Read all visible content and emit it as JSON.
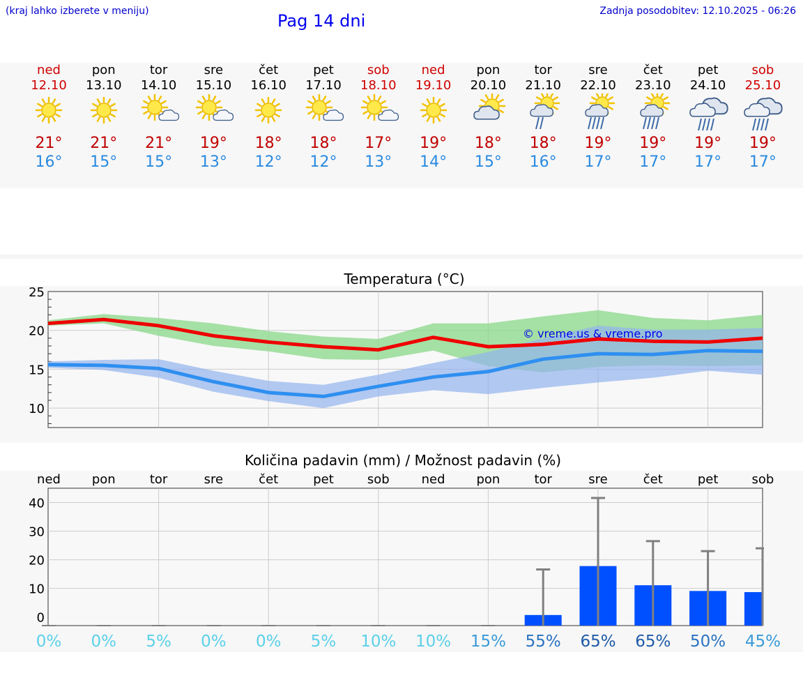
{
  "header": {
    "note": "(kraj lahko izberete v meniju)",
    "title": "Pag 14 dni",
    "updated": "Zadnja posodobitev: 12.10.2025 - 06:26"
  },
  "colors": {
    "weekday": "#000000",
    "weekend": "#d00000",
    "tmax": "#c00000",
    "tmin": "#2a8ae0",
    "max_line": "#ee0000",
    "min_line": "#2e8ff0",
    "max_band": "#8ad88a",
    "min_band": "#93b4ee",
    "bar": "#0050ff"
  },
  "days": [
    {
      "name": "ned",
      "date": "12.10",
      "icon": "sun-icon",
      "tmax": "21°",
      "tmin": "16°",
      "weekend": true
    },
    {
      "name": "pon",
      "date": "13.10",
      "icon": "sun-icon",
      "tmax": "21°",
      "tmin": "15°",
      "weekend": false
    },
    {
      "name": "tor",
      "date": "14.10",
      "icon": "sun-cloud-icon",
      "tmax": "21°",
      "tmin": "15°",
      "weekend": false
    },
    {
      "name": "sre",
      "date": "15.10",
      "icon": "sun-cloud-icon",
      "tmax": "19°",
      "tmin": "13°",
      "weekend": false
    },
    {
      "name": "čet",
      "date": "16.10",
      "icon": "sun-icon",
      "tmax": "18°",
      "tmin": "12°",
      "weekend": false
    },
    {
      "name": "pet",
      "date": "17.10",
      "icon": "sun-cloud-icon",
      "tmax": "18°",
      "tmin": "12°",
      "weekend": false
    },
    {
      "name": "sob",
      "date": "18.10",
      "icon": "sun-cloud-icon",
      "tmax": "17°",
      "tmin": "13°",
      "weekend": true
    },
    {
      "name": "ned",
      "date": "19.10",
      "icon": "sun-icon",
      "tmax": "19°",
      "tmin": "14°",
      "weekend": true
    },
    {
      "name": "pon",
      "date": "20.10",
      "icon": "cloud-sun-icon",
      "tmax": "18°",
      "tmin": "15°",
      "weekend": false
    },
    {
      "name": "tor",
      "date": "21.10",
      "icon": "sun-cloud-rain-icon",
      "tmax": "18°",
      "tmin": "16°",
      "weekend": false
    },
    {
      "name": "sre",
      "date": "22.10",
      "icon": "sun-cloud-heavy-rain-icon",
      "tmax": "19°",
      "tmin": "17°",
      "weekend": false
    },
    {
      "name": "čet",
      "date": "23.10",
      "icon": "sun-cloud-heavy-rain-icon",
      "tmax": "19°",
      "tmin": "17°",
      "weekend": false
    },
    {
      "name": "pet",
      "date": "24.10",
      "icon": "cloud-rain-icon",
      "tmax": "19°",
      "tmin": "17°",
      "weekend": false
    },
    {
      "name": "sob",
      "date": "25.10",
      "icon": "cloud-rain-icon",
      "tmax": "19°",
      "tmin": "17°",
      "weekend": true
    }
  ],
  "chart_data": [
    {
      "type": "line",
      "title": "Temperatura (°C)",
      "ylim": [
        7.5,
        25
      ],
      "yticks": [
        10,
        15,
        20,
        25
      ],
      "watermark": "© vreme.us & vreme.pro",
      "x": [
        0,
        1,
        2,
        3,
        4,
        5,
        6,
        7,
        8,
        9,
        10,
        11,
        12,
        13
      ],
      "series": [
        {
          "name": "max",
          "values": [
            20.9,
            21.4,
            20.6,
            19.3,
            18.5,
            17.9,
            17.5,
            19.1,
            17.9,
            18.2,
            18.9,
            18.6,
            18.5,
            19.0
          ],
          "upper": [
            21.3,
            22.1,
            21.6,
            20.9,
            19.9,
            19.2,
            18.9,
            20.9,
            20.9,
            21.8,
            22.6,
            21.6,
            21.3,
            22.0
          ],
          "lower": [
            20.6,
            20.9,
            19.3,
            18.0,
            17.3,
            16.3,
            16.2,
            17.4,
            15.4,
            14.6,
            15.3,
            15.5,
            15.4,
            15.5
          ]
        },
        {
          "name": "min",
          "values": [
            15.6,
            15.5,
            15.1,
            13.4,
            12.0,
            11.5,
            12.8,
            14.0,
            14.7,
            16.3,
            17.0,
            16.9,
            17.4,
            17.3
          ],
          "upper": [
            16.0,
            16.2,
            16.3,
            14.8,
            13.5,
            13.0,
            14.3,
            15.8,
            17.2,
            19.0,
            20.6,
            20.1,
            20.1,
            20.3
          ],
          "lower": [
            15.2,
            14.9,
            13.9,
            12.1,
            10.9,
            10.0,
            11.5,
            12.3,
            11.8,
            12.6,
            13.3,
            13.9,
            14.8,
            14.3
          ]
        }
      ]
    },
    {
      "type": "bar",
      "title": "Količina padavin (mm) / Možnost padavin (%)",
      "categories": [
        "ned",
        "pon",
        "tor",
        "sre",
        "čet",
        "pet",
        "sob",
        "ned",
        "pon",
        "tor",
        "sre",
        "čet",
        "pet",
        "sob"
      ],
      "ylim": [
        -3,
        45
      ],
      "yticks": [
        0,
        10,
        20,
        30,
        40
      ],
      "values": [
        0,
        0,
        0,
        0,
        0,
        0,
        0,
        0,
        0,
        0.7,
        17.8,
        11.1,
        9.1,
        8.7
      ],
      "error_max": [
        0,
        0,
        0,
        0,
        0,
        0,
        0,
        0,
        0,
        16.6,
        41.6,
        26.5,
        23.0,
        24.0
      ],
      "probabilities": [
        "0%",
        "0%",
        "5%",
        "0%",
        "0%",
        "5%",
        "10%",
        "10%",
        "15%",
        "55%",
        "65%",
        "65%",
        "50%",
        "45%"
      ]
    }
  ]
}
